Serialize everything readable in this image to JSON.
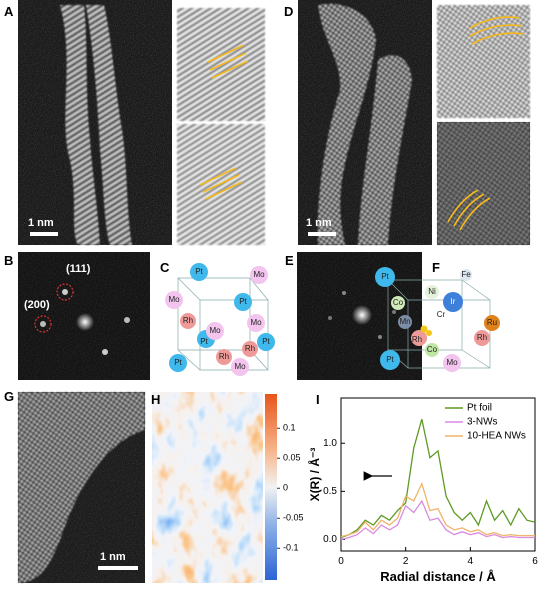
{
  "panel_labels": [
    "A",
    "B",
    "C",
    "D",
    "E",
    "F",
    "G",
    "H",
    "I"
  ],
  "scale_bars": [
    "1 nm",
    "1 nm",
    "1 nm"
  ],
  "fft_b": [
    "(111)",
    "(200)"
  ],
  "crystal_c": [
    "Pt",
    "Mo",
    "Mo",
    "Pt",
    "Rh",
    "Mo",
    "Mo",
    "Pt",
    "Rh",
    "Pt",
    "Pt",
    "Rh",
    "Mo"
  ],
  "crystal_f": [
    "Pt",
    "Fe",
    "Ni",
    "Co",
    "Ir",
    "Cr",
    "Mn",
    "Ru",
    "Rh",
    "Co",
    "Rh",
    "Pt",
    "Mo"
  ],
  "strain_colorbar": {
    "lim": [
      -0.153,
      0.157
    ],
    "ticks": [
      0.1,
      0.05,
      0,
      -0.05,
      -0.1
    ]
  },
  "chart_data": {
    "type": "line",
    "xlabel": "Radial distance / Å",
    "ylabel": "X(R) / Å⁻³",
    "x": [
      0,
      0.25,
      0.5,
      0.75,
      1,
      1.25,
      1.5,
      1.75,
      2,
      2.25,
      2.5,
      2.75,
      3,
      3.25,
      3.5,
      3.75,
      4,
      4.25,
      4.5,
      4.75,
      5,
      5.25,
      5.5,
      5.75,
      6
    ],
    "series": [
      {
        "name": "Pt foil",
        "color": "#5e9a23",
        "values": [
          0.02,
          0.05,
          0.1,
          0.2,
          0.15,
          0.25,
          0.2,
          0.3,
          0.38,
          0.95,
          1.25,
          0.85,
          0.92,
          0.45,
          0.28,
          0.2,
          0.28,
          0.15,
          0.4,
          0.2,
          0.3,
          0.15,
          0.32,
          0.2,
          0.18
        ]
      },
      {
        "name": "3-NWs",
        "color": "#d98ce0",
        "values": [
          0.0,
          0.02,
          0.05,
          0.12,
          0.06,
          0.15,
          0.1,
          0.15,
          0.35,
          0.28,
          0.4,
          0.2,
          0.22,
          0.1,
          0.05,
          0.08,
          0.05,
          0.07,
          0.03,
          0.05,
          0.02,
          0.03,
          0.02,
          0.02,
          0.02
        ]
      },
      {
        "name": "10-HEA NWs",
        "color": "#f0b46a",
        "values": [
          0.03,
          0.05,
          0.08,
          0.18,
          0.1,
          0.2,
          0.15,
          0.22,
          0.45,
          0.4,
          0.58,
          0.3,
          0.32,
          0.15,
          0.1,
          0.12,
          0.08,
          0.1,
          0.05,
          0.07,
          0.04,
          0.05,
          0.04,
          0.04,
          0.04
        ]
      }
    ],
    "xlim": [
      0,
      6
    ],
    "xticks": [
      0,
      2,
      4,
      6
    ],
    "ylim": [
      -0.12,
      1.47
    ],
    "yticks": [
      {
        "value": 0,
        "label": "0.0"
      },
      0.5,
      {
        "value": 1,
        "label": "1.0"
      }
    ],
    "legend": "upper right"
  }
}
